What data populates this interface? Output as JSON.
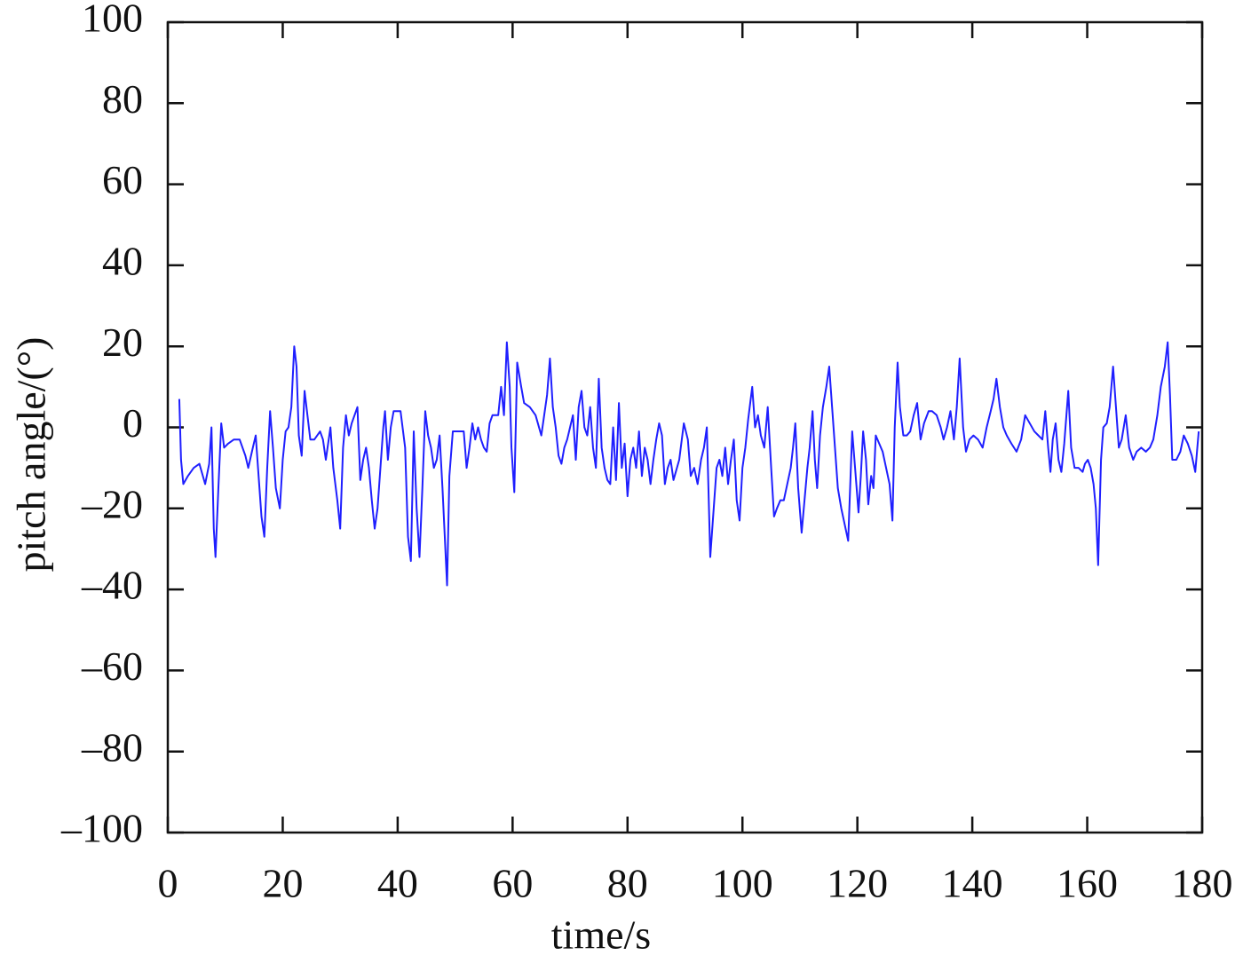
{
  "chart_data": {
    "type": "line",
    "x_label": "time/s",
    "y_label": "pitch angle/(°)",
    "xlim": [
      0,
      180
    ],
    "ylim": [
      -100,
      100
    ],
    "xticks": [
      0,
      20,
      40,
      60,
      80,
      100,
      120,
      140,
      160,
      180
    ],
    "yticks": [
      {
        "value": -100,
        "label": "–100"
      },
      {
        "value": -80,
        "label": "–80"
      },
      {
        "value": -60,
        "label": "–60"
      },
      {
        "value": -40,
        "label": "–40"
      },
      {
        "value": -20,
        "label": "–20"
      },
      0,
      20,
      40,
      60,
      80,
      100
    ],
    "grid": false,
    "x": [
      2,
      2.3,
      2.7,
      3.5,
      4.5,
      5.5,
      6.5,
      7.2,
      7.6,
      8,
      8.3,
      8.8,
      9.3,
      9.8,
      10.5,
      11.5,
      12.5,
      13.5,
      14,
      14.8,
      15.3,
      15.8,
      16.3,
      16.8,
      17.3,
      17.8,
      18.3,
      18.8,
      19.5,
      20,
      20.5,
      21,
      21.5,
      22,
      22.4,
      22.8,
      23.3,
      23.8,
      24.3,
      24.8,
      25.5,
      26.5,
      27,
      27.5,
      28.3,
      28.8,
      29.5,
      30,
      30.5,
      31,
      31.5,
      32,
      32.5,
      33,
      33.5,
      34,
      34.5,
      35,
      35.5,
      36,
      36.5,
      37,
      37.5,
      37.8,
      38.3,
      38.8,
      39.3,
      39.8,
      40.5,
      41.3,
      41.8,
      42.3,
      42.8,
      43.3,
      43.8,
      44.3,
      44.8,
      45.3,
      45.8,
      46.3,
      46.8,
      47.3,
      47.8,
      48.3,
      48.6,
      49,
      49.6,
      50.5,
      51.5,
      52,
      52.5,
      53,
      53.5,
      54,
      54.5,
      55,
      55.5,
      56,
      56.5,
      57.5,
      58,
      58.5,
      59,
      59.5,
      59.8,
      60.3,
      60.8,
      61.5,
      62,
      63,
      64,
      65,
      65.5,
      66,
      66.5,
      67,
      67.5,
      68,
      68.5,
      69,
      69.5,
      70,
      70.5,
      71,
      71.5,
      72,
      72.5,
      73,
      73.5,
      74,
      74.5,
      75,
      75.5,
      76,
      76.5,
      77,
      77.5,
      78,
      78.5,
      79,
      79.5,
      80,
      80.5,
      81,
      81.5,
      82,
      82.5,
      83,
      83.5,
      84,
      84.5,
      85,
      85.5,
      86,
      86.5,
      87,
      87.5,
      88,
      89,
      89.8,
      90.5,
      91,
      91.6,
      92.2,
      92.8,
      93.3,
      93.8,
      94.4,
      95,
      95.5,
      96,
      96.5,
      97,
      97.5,
      98,
      98.5,
      99,
      99.5,
      100,
      100.5,
      101,
      101.7,
      102.2,
      102.7,
      103.2,
      103.8,
      104.4,
      105,
      105.5,
      106,
      106.6,
      107.2,
      107.8,
      108.4,
      108.8,
      109.2,
      109.7,
      110.3,
      110.8,
      111.3,
      111.7,
      112.2,
      112.6,
      113,
      113.5,
      114,
      114.6,
      115.1,
      115.6,
      116.1,
      116.6,
      117.2,
      117.8,
      118.4,
      119.1,
      119.6,
      120.2,
      120.6,
      121,
      121.5,
      121.9,
      122.4,
      122.8,
      123.2,
      123.8,
      124.4,
      125,
      125.6,
      126.1,
      126.5,
      127,
      127.4,
      128,
      128.6,
      129.2,
      129.8,
      130.4,
      131,
      131.6,
      132.4,
      133,
      133.8,
      134.5,
      135,
      135.6,
      136.2,
      136.8,
      137.3,
      137.8,
      138.4,
      138.9,
      139.5,
      140.2,
      141,
      141.8,
      142.5,
      143.2,
      143.7,
      144.2,
      144.8,
      145.4,
      146,
      146.8,
      147.7,
      148.5,
      149.2,
      150,
      150.8,
      151.5,
      152.2,
      152.7,
      153.2,
      153.6,
      154,
      154.5,
      155,
      155.5,
      156,
      156.7,
      157.2,
      157.8,
      158.5,
      159.2,
      159.6,
      160.1,
      160.6,
      161.1,
      161.5,
      161.9,
      162.4,
      162.8,
      163.4,
      163.9,
      164.5,
      165,
      165.5,
      166,
      166.7,
      167.3,
      168,
      168.6,
      169.4,
      170.2,
      170.9,
      171.5,
      172.2,
      172.8,
      173.5,
      174,
      174.4,
      174.8,
      175.5,
      176.2,
      176.8,
      177.5,
      178.2,
      178.8,
      179.4
    ],
    "series": [
      {
        "color": "#1f1fff",
        "values": [
          7,
          -8,
          -14,
          -12,
          -10,
          -9,
          -14,
          -9,
          0,
          -25,
          -32,
          -15,
          1,
          -5,
          -4,
          -3,
          -3,
          -7,
          -10,
          -5,
          -2,
          -12,
          -22,
          -27,
          -10,
          4,
          -5,
          -15,
          -20,
          -8,
          -1,
          0,
          5,
          20,
          15,
          -2,
          -7,
          9,
          3,
          -3,
          -3,
          -1,
          -3,
          -8,
          0,
          -10,
          -18,
          -25,
          -5,
          3,
          -2,
          1,
          3,
          5,
          -13,
          -8,
          -5,
          -10,
          -18,
          -25,
          -20,
          -10,
          0,
          4,
          -8,
          0,
          4,
          4,
          4,
          -5,
          -27,
          -33,
          -1,
          -20,
          -32,
          -15,
          4,
          -2,
          -5,
          -10,
          -8,
          -2,
          -15,
          -30,
          -39,
          -12,
          -1,
          -1,
          -1,
          -10,
          -5,
          1,
          -3,
          0,
          -3,
          -5,
          -6,
          1,
          3,
          3,
          10,
          3,
          21,
          10,
          -5,
          -16,
          16,
          10,
          6,
          5,
          3,
          -2,
          3,
          8,
          17,
          5,
          0,
          -7,
          -9,
          -5,
          -3,
          0,
          3,
          -8,
          5,
          9,
          0,
          -2,
          5,
          -5,
          -10,
          12,
          -5,
          -10,
          -13,
          -14,
          0,
          -13,
          6,
          -10,
          -4,
          -17,
          -8,
          -5,
          -10,
          -1,
          -12,
          -5,
          -8,
          -14,
          -8,
          -3,
          1,
          -2,
          -14,
          -10,
          -8,
          -13,
          -8,
          1,
          -3,
          -12,
          -10,
          -14,
          -8,
          -5,
          0,
          -32,
          -20,
          -10,
          -8,
          -12,
          -5,
          -14,
          -8,
          -3,
          -18,
          -23,
          -10,
          -5,
          2,
          10,
          0,
          3,
          -2,
          -5,
          5,
          -10,
          -22,
          -20,
          -18,
          -18,
          -14,
          -10,
          -5,
          1,
          -15,
          -26,
          -18,
          -10,
          -5,
          4,
          -8,
          -15,
          -2,
          5,
          10,
          15,
          5,
          -5,
          -15,
          -20,
          -24,
          -28,
          -1,
          -10,
          -21,
          -12,
          -1,
          -8,
          -19,
          -12,
          -15,
          -2,
          -4,
          -6,
          -10,
          -14,
          -23,
          0,
          16,
          5,
          -2,
          -2,
          -1,
          3,
          6,
          -3,
          1,
          4,
          4,
          3,
          0,
          -3,
          0,
          4,
          -3,
          5,
          17,
          0,
          -6,
          -3,
          -2,
          -3,
          -5,
          0,
          4,
          7,
          12,
          5,
          0,
          -2,
          -4,
          -6,
          -3,
          3,
          1,
          -1,
          -2,
          -3,
          4,
          -5,
          -11,
          -3,
          1,
          -8,
          -11,
          -4,
          9,
          -5,
          -10,
          -10,
          -11,
          -9,
          -8,
          -10,
          -14,
          -20,
          -34,
          -8,
          0,
          1,
          5,
          15,
          5,
          -5,
          -3,
          3,
          -5,
          -8,
          -6,
          -5,
          -6,
          -5,
          -3,
          3,
          10,
          15,
          21,
          8,
          -8,
          -8,
          -6,
          -2,
          -4,
          -7,
          -11,
          -1
        ]
      }
    ]
  }
}
